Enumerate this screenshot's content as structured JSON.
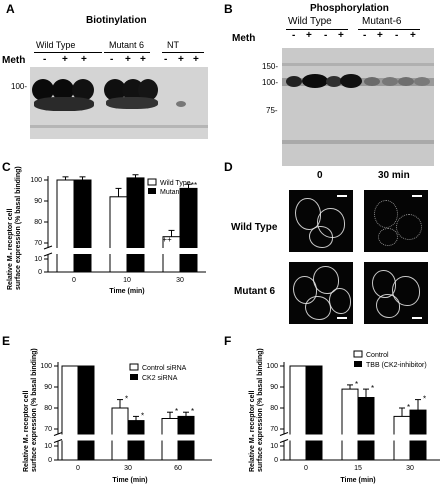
{
  "panels": {
    "A": {
      "letter": "A",
      "title": "Biotinylation",
      "groups": [
        "Wild Type",
        "Mutant 6",
        "NT"
      ],
      "meth_label": "Meth",
      "signs": [
        "-",
        "+",
        "+",
        "-",
        "+",
        "+",
        "-",
        "+",
        "+"
      ],
      "marker": "100-"
    },
    "B": {
      "letter": "B",
      "title": "Phosphorylation",
      "groups": [
        "Wild Type",
        "Mutant-6"
      ],
      "meth_label": "Meth",
      "signs": [
        "-",
        "+",
        "-",
        "+",
        "-",
        "+",
        "-",
        "+"
      ],
      "markers": [
        "150-",
        "100-",
        "75-"
      ]
    },
    "C": {
      "letter": "C",
      "ylabel_line1": "Relative M₃ receptor cell",
      "ylabel_line2": "surface expression (% basal binding)",
      "xlabel": "Time (min)",
      "legend": [
        "Wild Type",
        "Mutant 6"
      ],
      "yticks": [
        "100",
        "90",
        "80",
        "70",
        "10",
        "0"
      ],
      "xticks": [
        "0",
        "10",
        "30"
      ],
      "annotations": [
        "++",
        "**"
      ]
    },
    "D": {
      "letter": "D",
      "col_labels": [
        "0",
        "30 min"
      ],
      "row_labels": [
        "Wild Type",
        "Mutant 6"
      ]
    },
    "E": {
      "letter": "E",
      "ylabel_line1": "Relative M₃ receptor cell",
      "ylabel_line2": "surface expression (% basal binding)",
      "xlabel": "Time (min)",
      "legend": [
        "Control siRNA",
        "CK2 siRNA"
      ],
      "yticks": [
        "100",
        "90",
        "80",
        "70",
        "10",
        "0"
      ],
      "xticks": [
        "0",
        "30",
        "60"
      ],
      "star": "*"
    },
    "F": {
      "letter": "F",
      "ylabel_line1": "Relative M₃ receptor cell",
      "ylabel_line2": "surface expression (% basal binding)",
      "xlabel": "Time (min)",
      "legend": [
        "Control",
        "TBB (CK2-inhibitor)"
      ],
      "yticks": [
        "100",
        "90",
        "80",
        "70",
        "10",
        "0"
      ],
      "xticks": [
        "0",
        "15",
        "30"
      ],
      "star": "*"
    }
  },
  "chart_data": [
    {
      "type": "bar",
      "panel": "C",
      "categories": [
        "0",
        "10",
        "30"
      ],
      "series": [
        {
          "name": "Wild Type",
          "values": [
            100,
            92,
            73
          ],
          "err": [
            1.5,
            4,
            3
          ]
        },
        {
          "name": "Mutant 6",
          "values": [
            100,
            101,
            96
          ],
          "err": [
            1.5,
            1.5,
            2
          ]
        }
      ],
      "ylim": [
        0,
        100
      ],
      "break": [
        10,
        70
      ],
      "legend_position": "top-right"
    },
    {
      "type": "bar",
      "panel": "E",
      "categories": [
        "0",
        "30",
        "60"
      ],
      "series": [
        {
          "name": "Control siRNA",
          "values": [
            100,
            80,
            75
          ],
          "err": [
            0,
            4,
            3
          ]
        },
        {
          "name": "CK2 siRNA",
          "values": [
            100,
            74,
            76
          ],
          "err": [
            0,
            2,
            2
          ]
        }
      ],
      "ylim": [
        0,
        100
      ],
      "break": [
        10,
        70
      ],
      "legend_position": "top-right"
    },
    {
      "type": "bar",
      "panel": "F",
      "categories": [
        "0",
        "15",
        "30"
      ],
      "series": [
        {
          "name": "Control",
          "values": [
            100,
            89,
            76
          ],
          "err": [
            0,
            2,
            4
          ]
        },
        {
          "name": "TBB (CK2-inhibitor)",
          "values": [
            100,
            85,
            79
          ],
          "err": [
            0,
            4,
            5
          ]
        }
      ],
      "ylim": [
        0,
        100
      ],
      "break": [
        10,
        70
      ],
      "legend_position": "top-right"
    }
  ]
}
